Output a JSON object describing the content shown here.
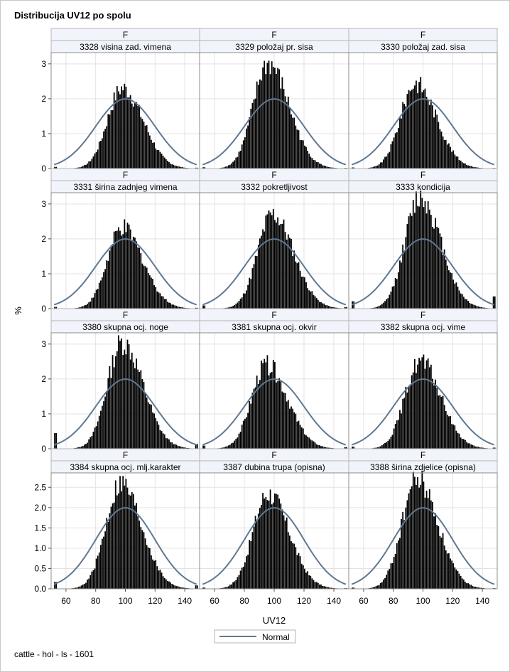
{
  "title": "Distribucija UV12 po spolu",
  "footnote": "cattle - hol - ls - 1601",
  "y_axis_label": "%",
  "x_axis_label": "UV12",
  "legend": {
    "label": "Normal"
  },
  "colors": {
    "bar": "#000000",
    "normal_curve": "#5f7891",
    "header_bg": "#f1f4fa",
    "grid": "#e3e3e3"
  },
  "chart_data": {
    "type": "bar",
    "xlabel": "UV12",
    "ylabel": "%",
    "xlim": [
      50,
      150
    ],
    "x_ticks": [
      60,
      80,
      100,
      120,
      140
    ],
    "normal": {
      "mean": 100,
      "sd": 20
    },
    "panels": [
      {
        "group": "F",
        "trait": "3328 visina zad. vimena",
        "peak": 2.3,
        "mode": 98,
        "tail": 0.08,
        "ylim": [
          0,
          3.2
        ],
        "yticks": [
          0,
          1,
          2,
          3
        ]
      },
      {
        "group": "F",
        "trait": "3329 položaj pr. sisa",
        "peak": 3.0,
        "mode": 96,
        "tail": 0.06,
        "ylim": [
          0,
          3.2
        ],
        "yticks": [
          0,
          1,
          2,
          3
        ]
      },
      {
        "group": "F",
        "trait": "3330 položaj zad. sisa",
        "peak": 2.45,
        "mode": 95,
        "tail": 0.05,
        "ylim": [
          0,
          3.2
        ],
        "yticks": [
          0,
          1,
          2,
          3
        ]
      },
      {
        "group": "F",
        "trait": "3331 širina zadnjeg vimena",
        "peak": 2.3,
        "mode": 98,
        "tail": 0.08,
        "ylim": [
          0,
          3.2
        ],
        "yticks": [
          0,
          1,
          2,
          3
        ]
      },
      {
        "group": "F",
        "trait": "3332 pokretljivost",
        "peak": 2.7,
        "mode": 99,
        "tail": 0.15,
        "ylim": [
          0,
          3.2
        ],
        "yticks": [
          0,
          1,
          2,
          3
        ]
      },
      {
        "group": "F",
        "trait": "3333 kondicija",
        "peak": 3.2,
        "mode": 98,
        "tail": 0.35,
        "ylim": [
          0,
          3.2
        ],
        "yticks": [
          0,
          1,
          2,
          3
        ]
      },
      {
        "group": "F",
        "trait": "3380 skupna ocj. noge",
        "peak": 3.05,
        "mode": 98,
        "tail": 0.45,
        "ylim": [
          0,
          3.2
        ],
        "yticks": [
          0,
          1,
          2,
          3
        ]
      },
      {
        "group": "F",
        "trait": "3381 skupna ocj. okvir",
        "peak": 2.4,
        "mode": 95,
        "tail": 0.15,
        "ylim": [
          0,
          3.2
        ],
        "yticks": [
          0,
          1,
          2,
          3
        ]
      },
      {
        "group": "F",
        "trait": "3382 skupna ocj. vime",
        "peak": 2.5,
        "mode": 98,
        "tail": 0.1,
        "ylim": [
          0,
          3.2
        ],
        "yticks": [
          0,
          1,
          2,
          3
        ]
      },
      {
        "group": "F",
        "trait": "3384 skupna ocj. mlj.karakter",
        "peak": 2.6,
        "mode": 97,
        "tail": 0.28,
        "ylim": [
          0,
          2.75
        ],
        "yticks": [
          0.0,
          0.5,
          1.0,
          1.5,
          2.0,
          2.5
        ]
      },
      {
        "group": "F",
        "trait": "3387 dubina trupa (opisna)",
        "peak": 2.35,
        "mode": 96,
        "tail": 0.05,
        "ylim": [
          0,
          2.75
        ],
        "yticks": [
          0.0,
          0.5,
          1.0,
          1.5,
          2.0,
          2.5
        ]
      },
      {
        "group": "F",
        "trait": "3388 širina zdjelice (opisna)",
        "peak": 2.7,
        "mode": 96,
        "tail": 0.05,
        "ylim": [
          0,
          2.75
        ],
        "yticks": [
          0.0,
          0.5,
          1.0,
          1.5,
          2.0,
          2.5
        ]
      }
    ]
  }
}
